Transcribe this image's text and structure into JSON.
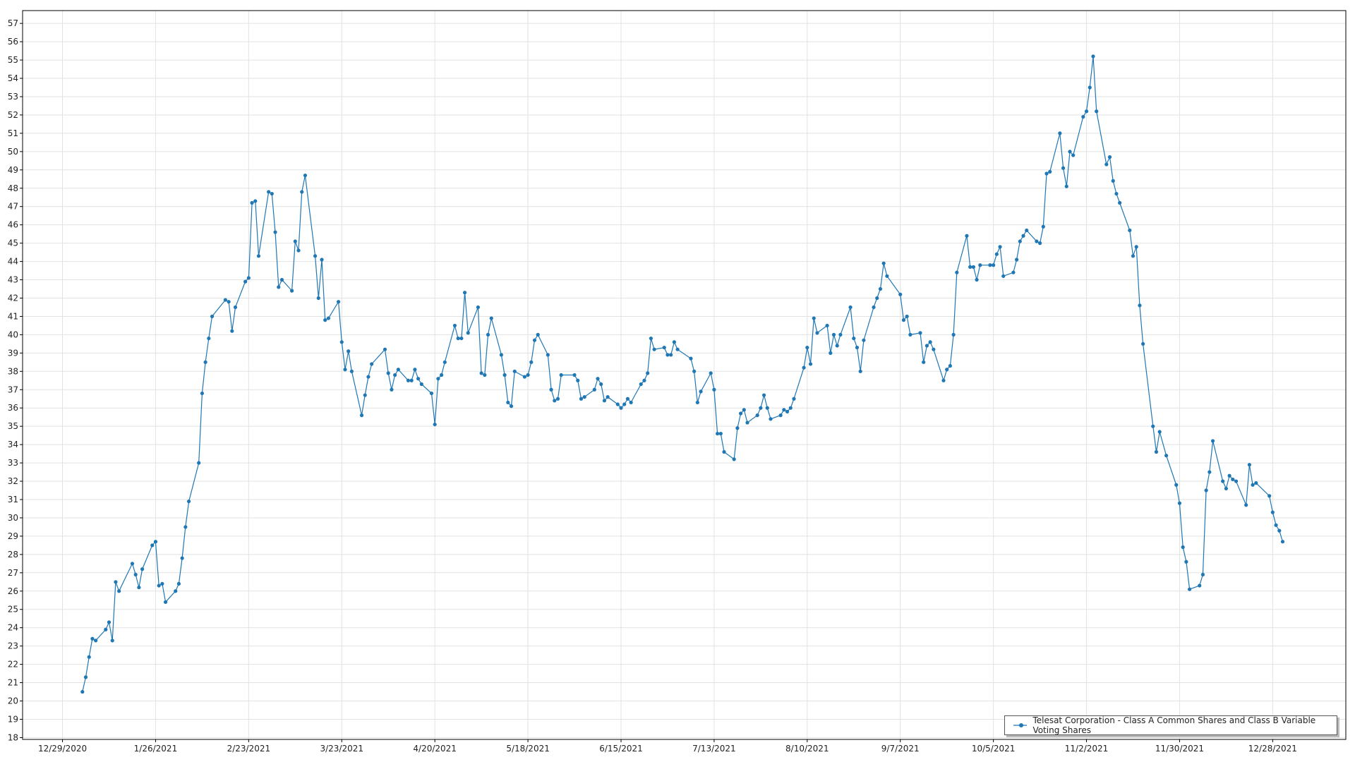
{
  "chart_data": {
    "type": "line",
    "title": "",
    "xlabel": "",
    "ylabel": "",
    "x_range": [
      "2020-12-17",
      "2022-01-19"
    ],
    "ylim": [
      17.9,
      57.7
    ],
    "y_ticks": [
      18,
      19,
      20,
      21,
      22,
      23,
      24,
      25,
      26,
      27,
      28,
      29,
      30,
      31,
      32,
      33,
      34,
      35,
      36,
      37,
      38,
      39,
      40,
      41,
      42,
      43,
      44,
      45,
      46,
      47,
      48,
      49,
      50,
      51,
      52,
      53,
      54,
      55,
      56,
      57
    ],
    "x_tick_labels": [
      "12/29/2020",
      "1/26/2021",
      "2/23/2021",
      "3/23/2021",
      "4/20/2021",
      "5/18/2021",
      "6/15/2021",
      "7/13/2021",
      "8/10/2021",
      "9/7/2021",
      "10/5/2021",
      "11/2/2021",
      "11/30/2021",
      "12/28/2021"
    ],
    "x_tick_dates": [
      "2020-12-29",
      "2021-01-26",
      "2021-02-23",
      "2021-03-23",
      "2021-04-20",
      "2021-05-18",
      "2021-06-15",
      "2021-07-13",
      "2021-08-10",
      "2021-09-07",
      "2021-10-05",
      "2021-11-02",
      "2021-11-30",
      "2021-12-28"
    ],
    "grid": true,
    "legend_position": "bottom-right",
    "colors": {
      "line": "#1f77b4",
      "grid": "#e2e2e2",
      "axis": "#000000"
    },
    "series": [
      {
        "name": "Telesat Corporation - Class A Common Shares and Class B Variable Voting Shares",
        "x": [
          "2021-01-04",
          "2021-01-05",
          "2021-01-06",
          "2021-01-07",
          "2021-01-08",
          "2021-01-11",
          "2021-01-12",
          "2021-01-13",
          "2021-01-14",
          "2021-01-15",
          "2021-01-19",
          "2021-01-20",
          "2021-01-21",
          "2021-01-22",
          "2021-01-25",
          "2021-01-26",
          "2021-01-27",
          "2021-01-28",
          "2021-01-29",
          "2021-02-01",
          "2021-02-02",
          "2021-02-03",
          "2021-02-04",
          "2021-02-05",
          "2021-02-08",
          "2021-02-09",
          "2021-02-10",
          "2021-02-11",
          "2021-02-12",
          "2021-02-16",
          "2021-02-17",
          "2021-02-18",
          "2021-02-19",
          "2021-02-22",
          "2021-02-23",
          "2021-02-24",
          "2021-02-25",
          "2021-02-26",
          "2021-03-01",
          "2021-03-02",
          "2021-03-03",
          "2021-03-04",
          "2021-03-05",
          "2021-03-08",
          "2021-03-09",
          "2021-03-10",
          "2021-03-11",
          "2021-03-12",
          "2021-03-15",
          "2021-03-16",
          "2021-03-17",
          "2021-03-18",
          "2021-03-19",
          "2021-03-22",
          "2021-03-23",
          "2021-03-24",
          "2021-03-25",
          "2021-03-26",
          "2021-03-29",
          "2021-03-30",
          "2021-03-31",
          "2021-04-01",
          "2021-04-05",
          "2021-04-06",
          "2021-04-07",
          "2021-04-08",
          "2021-04-09",
          "2021-04-12",
          "2021-04-13",
          "2021-04-14",
          "2021-04-15",
          "2021-04-16",
          "2021-04-19",
          "2021-04-20",
          "2021-04-21",
          "2021-04-22",
          "2021-04-23",
          "2021-04-26",
          "2021-04-27",
          "2021-04-28",
          "2021-04-29",
          "2021-04-30",
          "2021-05-03",
          "2021-05-04",
          "2021-05-05",
          "2021-05-06",
          "2021-05-07",
          "2021-05-10",
          "2021-05-11",
          "2021-05-12",
          "2021-05-13",
          "2021-05-14",
          "2021-05-17",
          "2021-05-18",
          "2021-05-19",
          "2021-05-20",
          "2021-05-21",
          "2021-05-24",
          "2021-05-25",
          "2021-05-26",
          "2021-05-27",
          "2021-05-28",
          "2021-06-01",
          "2021-06-02",
          "2021-06-03",
          "2021-06-04",
          "2021-06-07",
          "2021-06-08",
          "2021-06-09",
          "2021-06-10",
          "2021-06-11",
          "2021-06-14",
          "2021-06-15",
          "2021-06-16",
          "2021-06-17",
          "2021-06-18",
          "2021-06-21",
          "2021-06-22",
          "2021-06-23",
          "2021-06-24",
          "2021-06-25",
          "2021-06-28",
          "2021-06-29",
          "2021-06-30",
          "2021-07-01",
          "2021-07-02",
          "2021-07-06",
          "2021-07-07",
          "2021-07-08",
          "2021-07-09",
          "2021-07-12",
          "2021-07-13",
          "2021-07-14",
          "2021-07-15",
          "2021-07-16",
          "2021-07-19",
          "2021-07-20",
          "2021-07-21",
          "2021-07-22",
          "2021-07-23",
          "2021-07-26",
          "2021-07-27",
          "2021-07-28",
          "2021-07-29",
          "2021-07-30",
          "2021-08-02",
          "2021-08-03",
          "2021-08-04",
          "2021-08-05",
          "2021-08-06",
          "2021-08-09",
          "2021-08-10",
          "2021-08-11",
          "2021-08-12",
          "2021-08-13",
          "2021-08-16",
          "2021-08-17",
          "2021-08-18",
          "2021-08-19",
          "2021-08-20",
          "2021-08-23",
          "2021-08-24",
          "2021-08-25",
          "2021-08-26",
          "2021-08-27",
          "2021-08-30",
          "2021-08-31",
          "2021-09-01",
          "2021-09-02",
          "2021-09-03",
          "2021-09-07",
          "2021-09-08",
          "2021-09-09",
          "2021-09-10",
          "2021-09-13",
          "2021-09-14",
          "2021-09-15",
          "2021-09-16",
          "2021-09-17",
          "2021-09-20",
          "2021-09-21",
          "2021-09-22",
          "2021-09-23",
          "2021-09-24",
          "2021-09-27",
          "2021-09-28",
          "2021-09-29",
          "2021-09-30",
          "2021-10-01",
          "2021-10-04",
          "2021-10-05",
          "2021-10-06",
          "2021-10-07",
          "2021-10-08",
          "2021-10-11",
          "2021-10-12",
          "2021-10-13",
          "2021-10-14",
          "2021-10-15",
          "2021-10-18",
          "2021-10-19",
          "2021-10-20",
          "2021-10-21",
          "2021-10-22",
          "2021-10-25",
          "2021-10-26",
          "2021-10-27",
          "2021-10-28",
          "2021-10-29",
          "2021-11-01",
          "2021-11-02",
          "2021-11-03",
          "2021-11-04",
          "2021-11-05",
          "2021-11-08",
          "2021-11-09",
          "2021-11-10",
          "2021-11-11",
          "2021-11-12",
          "2021-11-15",
          "2021-11-16",
          "2021-11-17",
          "2021-11-18",
          "2021-11-19",
          "2021-11-22",
          "2021-11-23",
          "2021-11-24",
          "2021-11-26",
          "2021-11-29",
          "2021-11-30",
          "2021-12-01",
          "2021-12-02",
          "2021-12-03",
          "2021-12-06",
          "2021-12-07",
          "2021-12-08",
          "2021-12-09",
          "2021-12-10",
          "2021-12-13",
          "2021-12-14",
          "2021-12-15",
          "2021-12-16",
          "2021-12-17",
          "2021-12-20",
          "2021-12-21",
          "2021-12-22",
          "2021-12-23",
          "2021-12-27",
          "2021-12-28",
          "2021-12-29",
          "2021-12-30",
          "2021-12-31"
        ],
        "y": [
          20.5,
          21.3,
          22.4,
          23.4,
          23.3,
          23.9,
          24.3,
          23.3,
          26.5,
          26.0,
          27.5,
          26.9,
          26.2,
          27.2,
          28.5,
          28.7,
          26.3,
          26.4,
          25.4,
          26.0,
          26.4,
          27.8,
          29.5,
          30.9,
          33.0,
          36.8,
          38.5,
          39.8,
          41.0,
          41.9,
          41.8,
          40.2,
          41.5,
          42.9,
          43.1,
          47.2,
          47.3,
          44.3,
          47.8,
          47.7,
          45.6,
          42.6,
          43.0,
          42.4,
          45.1,
          44.6,
          47.8,
          48.7,
          44.3,
          42.0,
          44.1,
          40.8,
          40.9,
          41.8,
          39.6,
          38.1,
          39.1,
          38.0,
          35.6,
          36.7,
          37.7,
          38.4,
          39.2,
          37.9,
          37.0,
          37.8,
          38.1,
          37.5,
          37.5,
          38.1,
          37.6,
          37.3,
          36.8,
          35.1,
          37.6,
          37.8,
          38.5,
          40.5,
          39.8,
          39.8,
          42.3,
          40.1,
          41.5,
          37.9,
          37.8,
          40.0,
          40.9,
          38.9,
          37.8,
          36.3,
          36.1,
          38.0,
          37.7,
          37.8,
          38.5,
          39.7,
          40.0,
          38.9,
          37.0,
          36.4,
          36.5,
          37.8,
          37.8,
          37.5,
          36.5,
          36.6,
          37.0,
          37.6,
          37.3,
          36.4,
          36.6,
          36.2,
          36.0,
          36.2,
          36.5,
          36.3,
          37.3,
          37.5,
          37.9,
          39.8,
          39.2,
          39.3,
          38.9,
          38.9,
          39.6,
          39.2,
          38.7,
          38.0,
          36.3,
          36.9,
          37.9,
          37.0,
          34.6,
          34.6,
          33.6,
          33.2,
          34.9,
          35.7,
          35.9,
          35.2,
          35.6,
          36.0,
          36.7,
          36.0,
          35.4,
          35.6,
          35.9,
          35.8,
          36.0,
          36.5,
          38.2,
          39.3,
          38.4,
          40.9,
          40.1,
          40.5,
          39.0,
          40.0,
          39.4,
          40.0,
          41.5,
          39.8,
          39.3,
          38.0,
          39.7,
          41.5,
          42.0,
          42.5,
          43.9,
          43.2,
          42.2,
          40.8,
          41.0,
          40.0,
          40.1,
          38.5,
          39.4,
          39.6,
          39.2,
          37.5,
          38.1,
          38.3,
          40.0,
          43.4,
          45.4,
          43.7,
          43.7,
          43.0,
          43.8,
          43.8,
          43.8,
          44.4,
          44.8,
          43.2,
          43.4,
          44.1,
          45.1,
          45.4,
          45.7,
          45.1,
          45.0,
          45.9,
          48.8,
          48.9,
          51.0,
          49.1,
          48.1,
          50.0,
          49.8,
          51.9,
          52.2,
          53.5,
          55.2,
          52.2,
          49.3,
          49.7,
          48.4,
          47.7,
          47.2,
          45.7,
          44.3,
          44.8,
          41.6,
          39.5,
          35.0,
          33.6,
          34.7,
          33.4,
          31.8,
          30.8,
          28.4,
          27.6,
          26.1,
          26.3,
          26.9,
          31.5,
          32.5,
          34.2,
          32.0,
          31.6,
          32.3,
          32.1,
          32.0,
          30.7,
          32.9,
          31.8,
          31.9,
          31.2,
          30.3,
          29.6,
          29.3,
          28.7
        ]
      }
    ]
  }
}
